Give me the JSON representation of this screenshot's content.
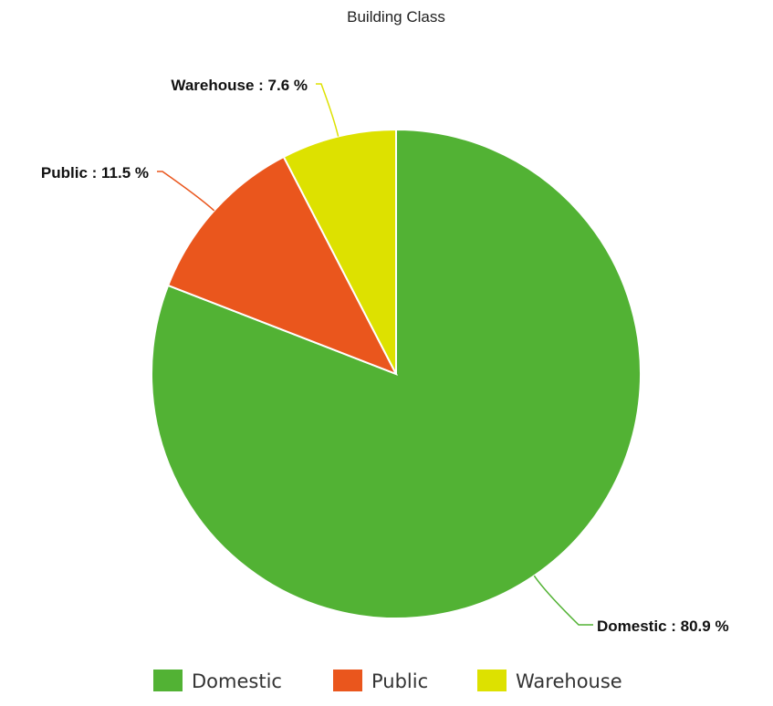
{
  "chart_data": {
    "type": "pie",
    "title": "Building Class",
    "slices": [
      {
        "name": "Domestic",
        "value": 80.9,
        "label": "Domestic : 80.9 %",
        "color": "#52b234"
      },
      {
        "name": "Public",
        "value": 11.5,
        "label": "Public : 11.5 %",
        "color": "#ea561d"
      },
      {
        "name": "Warehouse",
        "value": 7.6,
        "label": "Warehouse : 7.6 %",
        "color": "#dde100"
      }
    ],
    "legend": {
      "placement": "bottom",
      "entries": [
        "Domestic",
        "Public",
        "Warehouse"
      ]
    }
  }
}
